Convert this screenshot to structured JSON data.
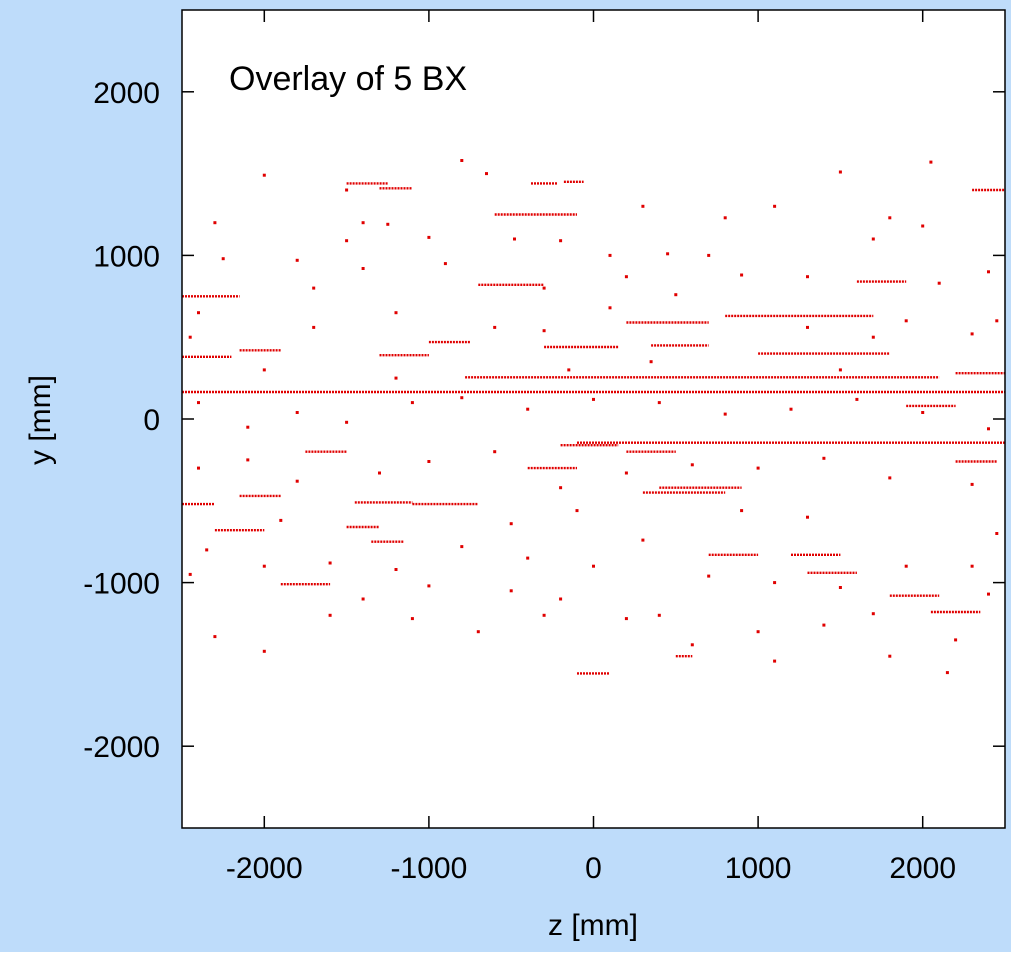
{
  "background_color": "#bedcfa",
  "plot_background_color": "#ffffff",
  "marker_color": "#e00000",
  "chart_data": {
    "type": "scatter",
    "title": "",
    "annotation": "Overlay of 5 BX",
    "xlabel": "z [mm]",
    "ylabel": "y [mm]",
    "xlim": [
      -2500,
      2500
    ],
    "ylim": [
      -2500,
      2500
    ],
    "xticks": [
      -2000,
      -1000,
      0,
      1000,
      2000
    ],
    "yticks": [
      2000,
      1000,
      0,
      -1000,
      -2000
    ],
    "grid": false,
    "legend": "none",
    "segments": [
      {
        "z": [
          -2500,
          2500
        ],
        "y": 165
      },
      {
        "z": [
          -780,
          2100
        ],
        "y": 255
      },
      {
        "z": [
          800,
          1700
        ],
        "y": 630
      },
      {
        "z": [
          -100,
          2500
        ],
        "y": -145
      },
      {
        "z": [
          -2500,
          -2150
        ],
        "y": 750
      },
      {
        "z": [
          -2500,
          -2200
        ],
        "y": 380
      },
      {
        "z": [
          -2500,
          -2300
        ],
        "y": -520
      },
      {
        "z": [
          -1500,
          -1250
        ],
        "y": 1440
      },
      {
        "z": [
          -380,
          -220
        ],
        "y": 1440
      },
      {
        "z": [
          -180,
          -60
        ],
        "y": 1450
      },
      {
        "z": [
          -600,
          -100
        ],
        "y": 1250
      },
      {
        "z": [
          -1000,
          -750
        ],
        "y": 470
      },
      {
        "z": [
          -300,
          150
        ],
        "y": 440
      },
      {
        "z": [
          350,
          700
        ],
        "y": 450
      },
      {
        "z": [
          -1300,
          -1000
        ],
        "y": 390
      },
      {
        "z": [
          -2150,
          -1900
        ],
        "y": 420
      },
      {
        "z": [
          200,
          700
        ],
        "y": 590
      },
      {
        "z": [
          1000,
          1800
        ],
        "y": 400
      },
      {
        "z": [
          -700,
          -300
        ],
        "y": 820
      },
      {
        "z": [
          -1450,
          -1100
        ],
        "y": -510
      },
      {
        "z": [
          -1100,
          -700
        ],
        "y": -520
      },
      {
        "z": [
          -400,
          -100
        ],
        "y": -300
      },
      {
        "z": [
          -1350,
          -1150
        ],
        "y": -750
      },
      {
        "z": [
          -1500,
          -1300
        ],
        "y": -660
      },
      {
        "z": [
          -2300,
          -2000
        ],
        "y": -680
      },
      {
        "z": [
          -2150,
          -1900
        ],
        "y": -470
      },
      {
        "z": [
          300,
          800
        ],
        "y": -450
      },
      {
        "z": [
          400,
          900
        ],
        "y": -420
      },
      {
        "z": [
          700,
          1000
        ],
        "y": -830
      },
      {
        "z": [
          1200,
          1500
        ],
        "y": -830
      },
      {
        "z": [
          1300,
          1600
        ],
        "y": -940
      },
      {
        "z": [
          1800,
          2100
        ],
        "y": -1080
      },
      {
        "z": [
          2050,
          2350
        ],
        "y": -1180
      },
      {
        "z": [
          2300,
          2500
        ],
        "y": 1400
      },
      {
        "z": [
          2200,
          2500
        ],
        "y": 280
      },
      {
        "z": [
          1900,
          2200
        ],
        "y": 80
      },
      {
        "z": [
          -1300,
          -1100
        ],
        "y": 1410
      },
      {
        "z": [
          1600,
          1900
        ],
        "y": 840
      },
      {
        "z": [
          2200,
          2450
        ],
        "y": -260
      },
      {
        "z": [
          -1750,
          -1500
        ],
        "y": -200
      },
      {
        "z": [
          -1900,
          -1600
        ],
        "y": -1010
      },
      {
        "z": [
          -200,
          150
        ],
        "y": -160
      },
      {
        "z": [
          200,
          500
        ],
        "y": -200
      },
      {
        "z": [
          -100,
          100
        ],
        "y": -1555
      },
      {
        "z": [
          500,
          600
        ],
        "y": -1450
      }
    ],
    "points": [
      [
        -2300,
        1200
      ],
      [
        -2000,
        1490
      ],
      [
        -2250,
        980
      ],
      [
        -1800,
        970
      ],
      [
        -1250,
        1190
      ],
      [
        -1000,
        1110
      ],
      [
        -1500,
        1090
      ],
      [
        -480,
        1100
      ],
      [
        -200,
        1090
      ],
      [
        100,
        1000
      ],
      [
        450,
        1010
      ],
      [
        700,
        1000
      ],
      [
        1100,
        1300
      ],
      [
        1500,
        1510
      ],
      [
        1800,
        1230
      ],
      [
        2000,
        1180
      ],
      [
        2050,
        1570
      ],
      [
        300,
        1300
      ],
      [
        -800,
        1580
      ],
      [
        -650,
        1500
      ],
      [
        1700,
        1100
      ],
      [
        800,
        1230
      ],
      [
        -1700,
        800
      ],
      [
        -1400,
        920
      ],
      [
        -900,
        950
      ],
      [
        -300,
        800
      ],
      [
        200,
        870
      ],
      [
        900,
        880
      ],
      [
        1300,
        870
      ],
      [
        2100,
        830
      ],
      [
        2400,
        900
      ],
      [
        -2450,
        500
      ],
      [
        -2000,
        300
      ],
      [
        -1700,
        560
      ],
      [
        -1200,
        650
      ],
      [
        -600,
        560
      ],
      [
        100,
        680
      ],
      [
        500,
        760
      ],
      [
        1300,
        560
      ],
      [
        1900,
        600
      ],
      [
        2300,
        520
      ],
      [
        -2400,
        100
      ],
      [
        -2100,
        -50
      ],
      [
        -1800,
        40
      ],
      [
        -1500,
        -20
      ],
      [
        -1100,
        100
      ],
      [
        -800,
        130
      ],
      [
        -400,
        60
      ],
      [
        0,
        120
      ],
      [
        400,
        100
      ],
      [
        800,
        30
      ],
      [
        1200,
        60
      ],
      [
        1600,
        120
      ],
      [
        2000,
        40
      ],
      [
        2400,
        -60
      ],
      [
        -2400,
        -300
      ],
      [
        -2100,
        -250
      ],
      [
        -1800,
        -380
      ],
      [
        -1300,
        -330
      ],
      [
        -1000,
        -260
      ],
      [
        -600,
        -200
      ],
      [
        -200,
        -420
      ],
      [
        200,
        -330
      ],
      [
        600,
        -280
      ],
      [
        1000,
        -300
      ],
      [
        1400,
        -240
      ],
      [
        1800,
        -360
      ],
      [
        2300,
        -400
      ],
      [
        -2350,
        -800
      ],
      [
        -2000,
        -900
      ],
      [
        -1600,
        -880
      ],
      [
        -1200,
        -920
      ],
      [
        -800,
        -780
      ],
      [
        -400,
        -850
      ],
      [
        0,
        -900
      ],
      [
        300,
        -740
      ],
      [
        700,
        -960
      ],
      [
        1100,
        -1000
      ],
      [
        1500,
        -1030
      ],
      [
        1900,
        -900
      ],
      [
        2300,
        -900
      ],
      [
        -2300,
        -1330
      ],
      [
        -2000,
        -1420
      ],
      [
        -1600,
        -1200
      ],
      [
        -1100,
        -1220
      ],
      [
        -700,
        -1300
      ],
      [
        -300,
        -1200
      ],
      [
        200,
        -1220
      ],
      [
        600,
        -1380
      ],
      [
        1000,
        -1300
      ],
      [
        1400,
        -1260
      ],
      [
        1700,
        -1190
      ],
      [
        2200,
        -1350
      ],
      [
        2400,
        -1070
      ],
      [
        -1000,
        -1020
      ],
      [
        -500,
        -1050
      ],
      [
        1100,
        -1480
      ],
      [
        2150,
        -1550
      ],
      [
        -200,
        -1100
      ],
      [
        400,
        -1200
      ],
      [
        -1400,
        -1100
      ],
      [
        1800,
        -1450
      ],
      [
        -150,
        300
      ],
      [
        350,
        350
      ],
      [
        -1200,
        250
      ],
      [
        1500,
        300
      ],
      [
        -2400,
        650
      ],
      [
        2450,
        600
      ],
      [
        -2450,
        -950
      ],
      [
        2450,
        -700
      ],
      [
        -1900,
        -620
      ],
      [
        900,
        -560
      ],
      [
        1300,
        -600
      ],
      [
        -500,
        -640
      ],
      [
        -100,
        -560
      ],
      [
        1700,
        500
      ],
      [
        -300,
        540
      ],
      [
        -1500,
        1400
      ],
      [
        -1400,
        1200
      ]
    ]
  }
}
